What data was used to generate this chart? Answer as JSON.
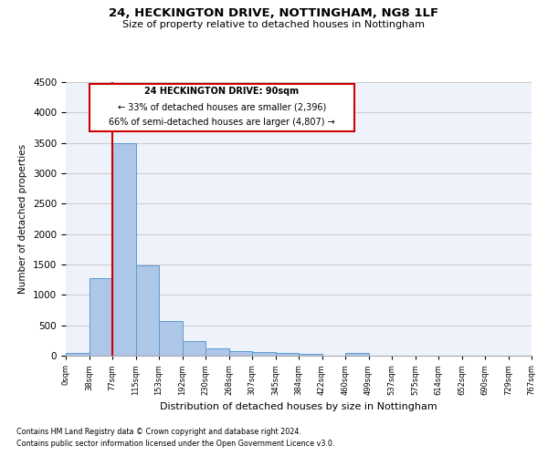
{
  "title1": "24, HECKINGTON DRIVE, NOTTINGHAM, NG8 1LF",
  "title2": "Size of property relative to detached houses in Nottingham",
  "xlabel": "Distribution of detached houses by size in Nottingham",
  "ylabel": "Number of detached properties",
  "footer1": "Contains HM Land Registry data © Crown copyright and database right 2024.",
  "footer2": "Contains public sector information licensed under the Open Government Licence v3.0.",
  "annotation_line1": "24 HECKINGTON DRIVE: 90sqm",
  "annotation_line2": "← 33% of detached houses are smaller (2,396)",
  "annotation_line3": "66% of semi-detached houses are larger (4,807) →",
  "bar_values": [
    40,
    1270,
    3500,
    1480,
    575,
    240,
    115,
    80,
    55,
    45,
    35,
    0,
    50,
    0,
    0,
    0,
    0,
    0,
    0,
    0
  ],
  "tick_labels": [
    "0sqm",
    "38sqm",
    "77sqm",
    "115sqm",
    "153sqm",
    "192sqm",
    "230sqm",
    "268sqm",
    "307sqm",
    "345sqm",
    "384sqm",
    "422sqm",
    "460sqm",
    "499sqm",
    "537sqm",
    "575sqm",
    "614sqm",
    "652sqm",
    "690sqm",
    "729sqm",
    "767sqm"
  ],
  "bar_color": "#aec6e8",
  "bar_edge_color": "#5b9bd5",
  "vline_x": 2,
  "vline_color": "#cc0000",
  "ylim": [
    0,
    4500
  ],
  "yticks": [
    0,
    500,
    1000,
    1500,
    2000,
    2500,
    3000,
    3500,
    4000,
    4500
  ],
  "grid_color": "#cccccc",
  "bg_color": "#eef3fb",
  "annotation_box_color": "#cc0000",
  "property_sqm": 90,
  "property_bin": 2
}
